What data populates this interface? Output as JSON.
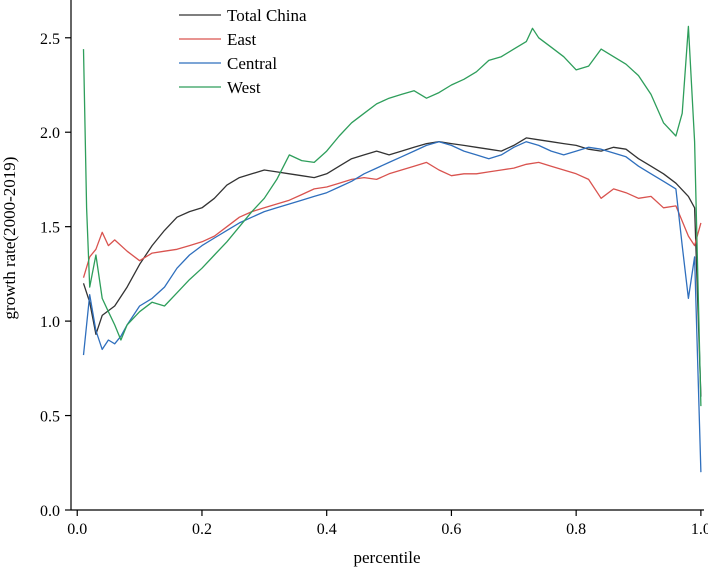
{
  "chart_data": {
    "type": "line",
    "title": "",
    "xlabel": "percentile",
    "ylabel": "growth rate(2000-2019)",
    "xlim": [
      -0.01,
      1.005
    ],
    "ylim": [
      0.0,
      2.7
    ],
    "xticks": [
      "0.0",
      "0.2",
      "0.4",
      "0.6",
      "0.8",
      "1.0"
    ],
    "xtick_values": [
      0.0,
      0.2,
      0.4,
      0.6,
      0.8,
      1.0
    ],
    "yticks": [
      "0.0",
      "0.5",
      "1.0",
      "1.5",
      "2.0",
      "2.5"
    ],
    "ytick_values": [
      0.0,
      0.5,
      1.0,
      1.5,
      2.0,
      2.5
    ],
    "grid": false,
    "legend_position": "top-left",
    "series": [
      {
        "name": "Total China",
        "color": "#333333",
        "x": [
          0.01,
          0.02,
          0.03,
          0.04,
          0.06,
          0.08,
          0.1,
          0.12,
          0.14,
          0.16,
          0.18,
          0.2,
          0.22,
          0.24,
          0.26,
          0.28,
          0.3,
          0.32,
          0.34,
          0.36,
          0.38,
          0.4,
          0.42,
          0.44,
          0.46,
          0.48,
          0.5,
          0.52,
          0.54,
          0.56,
          0.58,
          0.6,
          0.62,
          0.64,
          0.66,
          0.68,
          0.7,
          0.72,
          0.74,
          0.76,
          0.78,
          0.8,
          0.82,
          0.84,
          0.86,
          0.88,
          0.9,
          0.92,
          0.94,
          0.96,
          0.98,
          0.99,
          1.0
        ],
        "y": [
          1.2,
          1.1,
          0.93,
          1.03,
          1.08,
          1.18,
          1.3,
          1.4,
          1.48,
          1.55,
          1.58,
          1.6,
          1.65,
          1.72,
          1.76,
          1.78,
          1.8,
          1.79,
          1.78,
          1.77,
          1.76,
          1.78,
          1.82,
          1.86,
          1.88,
          1.9,
          1.88,
          1.9,
          1.92,
          1.94,
          1.95,
          1.94,
          1.93,
          1.92,
          1.91,
          1.9,
          1.93,
          1.97,
          1.96,
          1.95,
          1.94,
          1.93,
          1.91,
          1.9,
          1.92,
          1.91,
          1.86,
          1.82,
          1.78,
          1.73,
          1.66,
          1.6,
          0.6
        ]
      },
      {
        "name": "East",
        "color": "#d9534f",
        "x": [
          0.01,
          0.02,
          0.03,
          0.04,
          0.05,
          0.06,
          0.08,
          0.1,
          0.12,
          0.14,
          0.16,
          0.18,
          0.2,
          0.22,
          0.24,
          0.26,
          0.28,
          0.3,
          0.32,
          0.34,
          0.36,
          0.38,
          0.4,
          0.42,
          0.44,
          0.46,
          0.48,
          0.5,
          0.52,
          0.54,
          0.56,
          0.58,
          0.6,
          0.62,
          0.64,
          0.66,
          0.68,
          0.7,
          0.72,
          0.74,
          0.76,
          0.78,
          0.8,
          0.82,
          0.84,
          0.86,
          0.88,
          0.9,
          0.92,
          0.94,
          0.96,
          0.98,
          0.99,
          1.0
        ],
        "y": [
          1.23,
          1.34,
          1.38,
          1.47,
          1.4,
          1.43,
          1.37,
          1.32,
          1.36,
          1.37,
          1.38,
          1.4,
          1.42,
          1.45,
          1.5,
          1.55,
          1.58,
          1.6,
          1.62,
          1.64,
          1.67,
          1.7,
          1.71,
          1.73,
          1.75,
          1.76,
          1.75,
          1.78,
          1.8,
          1.82,
          1.84,
          1.8,
          1.77,
          1.78,
          1.78,
          1.79,
          1.8,
          1.81,
          1.83,
          1.84,
          1.82,
          1.8,
          1.78,
          1.75,
          1.65,
          1.7,
          1.68,
          1.65,
          1.66,
          1.6,
          1.61,
          1.45,
          1.4,
          1.52
        ]
      },
      {
        "name": "Central",
        "color": "#2f6fbd",
        "x": [
          0.01,
          0.02,
          0.03,
          0.04,
          0.05,
          0.06,
          0.07,
          0.08,
          0.1,
          0.12,
          0.14,
          0.16,
          0.18,
          0.2,
          0.22,
          0.24,
          0.26,
          0.28,
          0.3,
          0.32,
          0.34,
          0.36,
          0.38,
          0.4,
          0.42,
          0.44,
          0.46,
          0.48,
          0.5,
          0.52,
          0.54,
          0.56,
          0.58,
          0.6,
          0.62,
          0.64,
          0.66,
          0.68,
          0.7,
          0.72,
          0.74,
          0.76,
          0.78,
          0.8,
          0.82,
          0.84,
          0.86,
          0.88,
          0.9,
          0.92,
          0.94,
          0.96,
          0.97,
          0.98,
          0.99,
          1.0
        ],
        "y": [
          0.82,
          1.14,
          0.95,
          0.85,
          0.9,
          0.88,
          0.92,
          0.98,
          1.08,
          1.12,
          1.18,
          1.28,
          1.35,
          1.4,
          1.44,
          1.48,
          1.52,
          1.55,
          1.58,
          1.6,
          1.62,
          1.64,
          1.66,
          1.68,
          1.71,
          1.74,
          1.78,
          1.81,
          1.84,
          1.87,
          1.9,
          1.93,
          1.95,
          1.93,
          1.9,
          1.88,
          1.86,
          1.88,
          1.92,
          1.95,
          1.93,
          1.9,
          1.88,
          1.9,
          1.92,
          1.91,
          1.89,
          1.87,
          1.82,
          1.78,
          1.74,
          1.7,
          1.4,
          1.12,
          1.34,
          0.2
        ]
      },
      {
        "name": "West",
        "color": "#2e9e5b",
        "x": [
          0.01,
          0.015,
          0.02,
          0.03,
          0.04,
          0.05,
          0.06,
          0.07,
          0.08,
          0.1,
          0.12,
          0.14,
          0.16,
          0.18,
          0.2,
          0.22,
          0.24,
          0.26,
          0.28,
          0.3,
          0.32,
          0.34,
          0.36,
          0.38,
          0.4,
          0.42,
          0.44,
          0.46,
          0.48,
          0.5,
          0.52,
          0.54,
          0.56,
          0.58,
          0.6,
          0.62,
          0.64,
          0.66,
          0.68,
          0.7,
          0.72,
          0.73,
          0.74,
          0.76,
          0.78,
          0.8,
          0.82,
          0.84,
          0.86,
          0.88,
          0.9,
          0.92,
          0.94,
          0.96,
          0.97,
          0.98,
          0.99,
          1.0
        ],
        "y": [
          2.44,
          1.6,
          1.18,
          1.35,
          1.12,
          1.05,
          0.98,
          0.9,
          0.98,
          1.05,
          1.1,
          1.08,
          1.15,
          1.22,
          1.28,
          1.35,
          1.42,
          1.5,
          1.58,
          1.65,
          1.75,
          1.88,
          1.85,
          1.84,
          1.9,
          1.98,
          2.05,
          2.1,
          2.15,
          2.18,
          2.2,
          2.22,
          2.18,
          2.21,
          2.25,
          2.28,
          2.32,
          2.38,
          2.4,
          2.44,
          2.48,
          2.55,
          2.5,
          2.45,
          2.4,
          2.33,
          2.35,
          2.44,
          2.4,
          2.36,
          2.3,
          2.2,
          2.05,
          1.98,
          2.1,
          2.56,
          1.95,
          0.55
        ]
      }
    ]
  }
}
